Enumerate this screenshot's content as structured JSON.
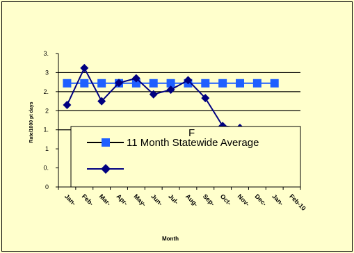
{
  "chart_data": {
    "type": "line",
    "title": "",
    "xlabel": "Month",
    "ylabel": "Rate/1000 pt days",
    "ylim": [
      0,
      3.5
    ],
    "yticks": [
      {
        "value": 0,
        "label": "0"
      },
      {
        "value": 0.5,
        "label": "0."
      },
      {
        "value": 1,
        "label": "1"
      },
      {
        "value": 1.5,
        "label": "1."
      },
      {
        "value": 2,
        "label": "2"
      },
      {
        "value": 2.5,
        "label": "2."
      },
      {
        "value": 3,
        "label": "3"
      },
      {
        "value": 3.5,
        "label": "3."
      }
    ],
    "grid_y_values": [
      1.5,
      2,
      2.5,
      3
    ],
    "categories": [
      "Jan-",
      "Feb-",
      "Mar-",
      "Apr-",
      "May-",
      "Jun-",
      "Jul-",
      "Aug-",
      "Sep-",
      "Oct-",
      "Nov-",
      "Dec-",
      "Jan-",
      "Feb-10"
    ],
    "series": [
      {
        "name": "11 Month Statewide Average",
        "color": "#1f5fff",
        "marker": "square",
        "values": [
          2.72,
          2.72,
          2.72,
          2.72,
          2.72,
          2.72,
          2.72,
          2.72,
          2.72,
          2.72,
          2.72,
          2.72,
          2.72,
          null
        ]
      },
      {
        "name": "",
        "color": "#000080",
        "marker": "diamond",
        "values": [
          2.15,
          3.12,
          2.25,
          2.73,
          2.85,
          2.43,
          2.55,
          2.8,
          2.33,
          1.6,
          1.55,
          null,
          null,
          null
        ]
      }
    ],
    "legend_position": "center-bottom",
    "annotation": "F",
    "grid": true
  }
}
